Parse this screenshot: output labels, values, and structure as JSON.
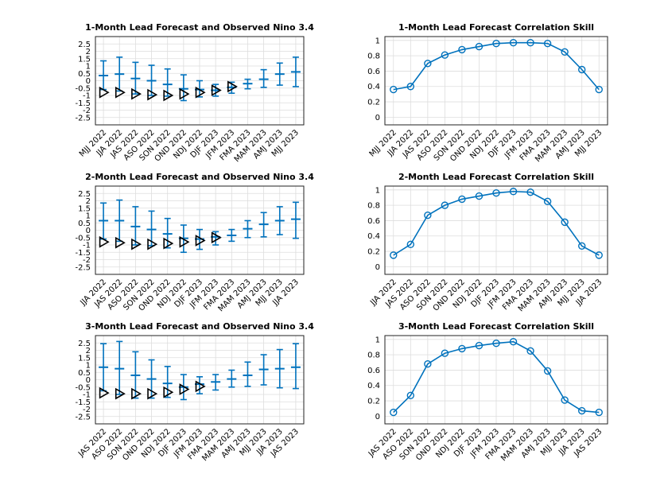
{
  "colors": {
    "series": "#0072BD",
    "observed": "#000000",
    "grid": "#dddddd"
  },
  "chart_data": [
    {
      "type": "errorbar",
      "panel": "forecast",
      "title": "1-Month Lead Forecast and Observed Nino 3.4",
      "categories": [
        "MJJ 2022",
        "JJA 2022",
        "JAS 2022",
        "ASO 2022",
        "SON 2022",
        "OND 2022",
        "NDJ 2022",
        "DJF 2023",
        "JFM 2023",
        "FMA 2023",
        "MAM 2023",
        "AMJ 2023",
        "MJJ 2023"
      ],
      "yticks": [
        2.5,
        2,
        1.5,
        1,
        0.5,
        0,
        -0.5,
        -1,
        -1.5,
        -2,
        -2.5
      ],
      "ylim": [
        -3,
        3
      ],
      "forecast": {
        "mean": [
          0.35,
          0.45,
          0.15,
          0.0,
          -0.25,
          -0.55,
          -0.6,
          -0.65,
          -0.45,
          -0.2,
          0.1,
          0.45,
          0.6
        ],
        "lower": [
          -0.6,
          -0.7,
          -0.9,
          -1.0,
          -1.05,
          -1.35,
          -1.1,
          -1.05,
          -0.85,
          -0.55,
          -0.45,
          -0.3,
          -0.4
        ],
        "upper": [
          1.35,
          1.6,
          1.25,
          1.05,
          0.8,
          0.4,
          0.0,
          -0.25,
          -0.1,
          0.1,
          0.75,
          1.2,
          1.6
        ]
      },
      "observed": [
        -0.8,
        -0.8,
        -0.9,
        -0.95,
        -1.0,
        -0.9,
        -0.8,
        -0.65,
        -0.4,
        null,
        null,
        null,
        null
      ]
    },
    {
      "type": "line",
      "panel": "skill",
      "title": "1-Month Lead Forecast Correlation Skill",
      "categories": [
        "MJJ 2022",
        "JJA 2022",
        "JAS 2022",
        "ASO 2022",
        "SON 2022",
        "OND 2022",
        "NDJ 2022",
        "DJF 2023",
        "JFM 2023",
        "FMA 2023",
        "MAM 2023",
        "AMJ 2023",
        "MJJ 2023"
      ],
      "yticks": [
        1,
        0.8,
        0.6,
        0.4,
        0.2,
        0
      ],
      "ylim": [
        -0.1,
        1.05
      ],
      "values": [
        0.36,
        0.4,
        0.7,
        0.81,
        0.88,
        0.92,
        0.96,
        0.97,
        0.97,
        0.96,
        0.85,
        0.62,
        0.36
      ]
    },
    {
      "type": "errorbar",
      "panel": "forecast",
      "title": "2-Month Lead Forecast and Observed Nino 3.4",
      "categories": [
        "JJA 2022",
        "JAS 2022",
        "ASO 2022",
        "SON 2022",
        "OND 2022",
        "NDJ 2022",
        "DJF 2023",
        "JFM 2023",
        "FMA 2023",
        "MAM 2023",
        "AMJ 2023",
        "MJJ 2023",
        "JJA 2023"
      ],
      "yticks": [
        2.5,
        2,
        1.5,
        1,
        0.5,
        0,
        -0.5,
        -1,
        -1.5,
        -2,
        -2.5
      ],
      "ylim": [
        -3,
        3
      ],
      "forecast": {
        "mean": [
          0.65,
          0.65,
          0.25,
          0.05,
          -0.25,
          -0.55,
          -0.6,
          -0.45,
          -0.35,
          0.1,
          0.4,
          0.65,
          0.75
        ],
        "lower": [
          -0.6,
          -0.75,
          -1.0,
          -1.05,
          -1.2,
          -1.5,
          -1.3,
          -1.0,
          -0.75,
          -0.5,
          -0.45,
          -0.3,
          -0.55
        ],
        "upper": [
          1.85,
          2.05,
          1.6,
          1.3,
          0.8,
          0.35,
          0.05,
          -0.1,
          0.05,
          0.65,
          1.2,
          1.6,
          1.9
        ]
      },
      "observed": [
        -0.8,
        -0.85,
        -0.95,
        -0.95,
        -0.9,
        -0.8,
        -0.7,
        -0.5,
        null,
        null,
        null,
        null,
        null
      ]
    },
    {
      "type": "line",
      "panel": "skill",
      "title": "2-Month Lead Forecast Correlation Skill",
      "categories": [
        "JJA 2022",
        "JAS 2022",
        "ASO 2022",
        "SON 2022",
        "OND 2022",
        "NDJ 2022",
        "DJF 2023",
        "JFM 2023",
        "FMA 2023",
        "MAM 2023",
        "AMJ 2023",
        "MJJ 2023",
        "JJA 2023"
      ],
      "yticks": [
        1,
        0.8,
        0.6,
        0.4,
        0.2,
        0
      ],
      "ylim": [
        -0.1,
        1.05
      ],
      "values": [
        0.15,
        0.29,
        0.67,
        0.8,
        0.88,
        0.92,
        0.96,
        0.98,
        0.97,
        0.85,
        0.58,
        0.27,
        0.15
      ]
    },
    {
      "type": "errorbar",
      "panel": "forecast",
      "title": "3-Month Lead Forecast and Observed Nino 3.4",
      "categories": [
        "JAS 2022",
        "ASO 2022",
        "SON 2022",
        "OND 2022",
        "NDJ 2022",
        "DJF 2023",
        "JFM 2023",
        "FMA 2023",
        "MAM 2023",
        "AMJ 2023",
        "MJJ 2023",
        "JJA 2023",
        "JAS 2023"
      ],
      "yticks": [
        2.5,
        2,
        1.5,
        1,
        0.5,
        0,
        -0.5,
        -1,
        -1.5,
        -2,
        -2.5
      ],
      "ylim": [
        -3,
        3
      ],
      "forecast": {
        "mean": [
          0.85,
          0.75,
          0.3,
          0.05,
          -0.25,
          -0.5,
          -0.3,
          -0.15,
          0.05,
          0.3,
          0.7,
          0.75,
          0.85
        ],
        "lower": [
          -0.75,
          -1.0,
          -1.25,
          -1.25,
          -1.2,
          -1.35,
          -0.95,
          -0.7,
          -0.5,
          -0.45,
          -0.35,
          -0.55,
          -0.6
        ],
        "upper": [
          2.45,
          2.6,
          1.9,
          1.35,
          0.9,
          0.35,
          0.2,
          0.35,
          0.65,
          1.2,
          1.7,
          2.05,
          2.45
        ]
      },
      "observed": [
        -0.9,
        -0.95,
        -0.95,
        -0.95,
        -0.85,
        -0.65,
        -0.45,
        null,
        null,
        null,
        null,
        null,
        null
      ]
    },
    {
      "type": "line",
      "panel": "skill",
      "title": "3-Month Lead Forecast Correlation Skill",
      "categories": [
        "JAS 2022",
        "ASO 2022",
        "SON 2022",
        "OND 2022",
        "NDJ 2022",
        "DJF 2023",
        "JFM 2023",
        "FMA 2023",
        "MAM 2023",
        "AMJ 2023",
        "MJJ 2023",
        "JJA 2023",
        "JAS 2023"
      ],
      "yticks": [
        1,
        0.8,
        0.6,
        0.4,
        0.2,
        0
      ],
      "ylim": [
        -0.1,
        1.05
      ],
      "values": [
        0.05,
        0.27,
        0.68,
        0.82,
        0.88,
        0.92,
        0.95,
        0.97,
        0.85,
        0.59,
        0.21,
        0.07,
        0.05
      ]
    }
  ]
}
